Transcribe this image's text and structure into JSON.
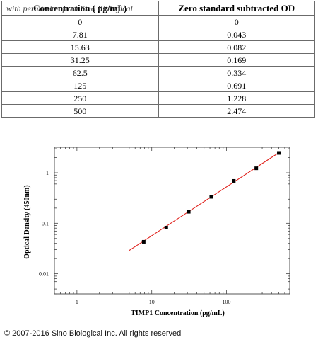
{
  "watermark": "with permission from Sino Biological",
  "table": {
    "headers": [
      "Concentration ( pg/mL)",
      "Zero standard subtracted OD"
    ],
    "rows": [
      [
        "0",
        "0"
      ],
      [
        "7.81",
        "0.043"
      ],
      [
        "15.63",
        "0.082"
      ],
      [
        "31.25",
        "0.169"
      ],
      [
        "62.5",
        "0.334"
      ],
      [
        "125",
        "0.691"
      ],
      [
        "250",
        "1.228"
      ],
      [
        "500",
        "2.474"
      ]
    ]
  },
  "chart_data": {
    "type": "scatter",
    "title": "",
    "xlabel": "TIMP1 Concentration (pg/mL)",
    "ylabel": "Optical Density (450nm)",
    "xscale": "log",
    "yscale": "log",
    "xlim": [
      0.5,
      700
    ],
    "ylim": [
      0.004,
      3.2
    ],
    "xticks": [
      1,
      10,
      100
    ],
    "xticklabels": [
      "1",
      "10",
      "100"
    ],
    "yticks": [
      0.01,
      0.1,
      1
    ],
    "yticklabels": [
      "0.01",
      "0.1",
      "1"
    ],
    "series": [
      {
        "x": [
          7.81,
          15.63,
          31.25,
          62.5,
          125,
          250,
          500
        ],
        "y": [
          0.043,
          0.082,
          0.169,
          0.334,
          0.691,
          1.228,
          2.474
        ],
        "marker": "square",
        "color": "#000000"
      }
    ],
    "fit": {
      "type": "line",
      "x": [
        5,
        500
      ],
      "y": [
        0.029,
        2.5
      ],
      "color": "#e0201b"
    },
    "grid": false,
    "legend": "none"
  },
  "copyright": "© 2007-2016 Sino Biological Inc. All rights reserved"
}
